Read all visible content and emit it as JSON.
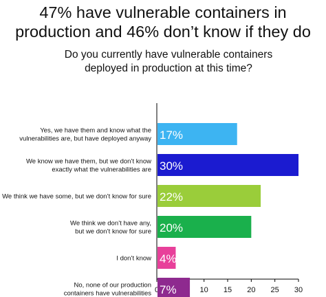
{
  "title_lines": [
    "47% have vulnerable containers in",
    "production and 46% don’t know if they do"
  ],
  "subtitle_lines": [
    "Do you currently have vulnerable containers",
    "deployed in production at this time?"
  ],
  "chart_data": {
    "type": "bar",
    "orientation": "horizontal",
    "categories": [
      [
        "Yes, we have them and know what the",
        "vulnerabilities are, but have deployed anyway"
      ],
      [
        "We know we have them, but we don’t know",
        "exactly what the vulnerabilities are"
      ],
      [
        "We think we have some, but we don’t know for sure"
      ],
      [
        "We think we don’t have any,",
        "but we don’t know for sure"
      ],
      [
        "I don’t know"
      ],
      [
        "No, none of our production",
        "containers have vulnerabilities"
      ]
    ],
    "values": [
      17,
      30,
      22,
      20,
      4,
      7
    ],
    "data_labels": [
      "17%",
      "30%",
      "22%",
      "20%",
      "4%",
      "7%"
    ],
    "colors": [
      "#3db4f2",
      "#1b1bd0",
      "#9acd3a",
      "#1ab04c",
      "#e8409a",
      "#8e2a8f"
    ],
    "xlim": [
      0,
      30
    ],
    "xticks": [
      "0",
      "5",
      "10",
      "15",
      "20",
      "25",
      "30"
    ],
    "grid": false
  }
}
